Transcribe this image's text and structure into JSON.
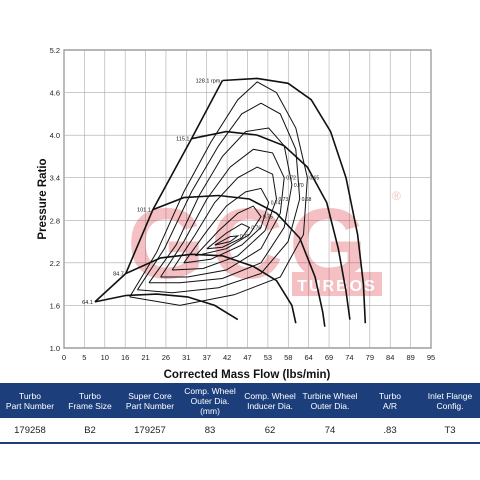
{
  "chart_data": {
    "type": "line",
    "xlabel": "Corrected Mass Flow (lbs/min)",
    "ylabel": "Pressure Ratio",
    "xlim": [
      0,
      95
    ],
    "ylim": [
      1.0,
      5.2
    ],
    "xticks": [
      "0",
      "5",
      "10",
      "16",
      "21",
      "26",
      "31",
      "37",
      "42",
      "47",
      "53",
      "58",
      "64",
      "69",
      "74",
      "79",
      "84",
      "89",
      "95"
    ],
    "yticks": [
      "1.0",
      "1.6",
      "2.2",
      "2.8",
      "3.4",
      "4.0",
      "4.6",
      "5.2"
    ],
    "grid": true,
    "speed_lines": [
      {
        "label": "64.1",
        "points": [
          [
            8,
            1.65
          ],
          [
            16,
            1.74
          ],
          [
            24,
            1.76
          ],
          [
            32,
            1.72
          ],
          [
            39,
            1.6
          ],
          [
            45,
            1.4
          ]
        ]
      },
      {
        "label": "84.7",
        "points": [
          [
            16,
            2.05
          ],
          [
            25,
            2.27
          ],
          [
            33,
            2.32
          ],
          [
            41,
            2.3
          ],
          [
            49,
            2.15
          ],
          [
            55,
            1.95
          ],
          [
            59,
            1.6
          ],
          [
            60,
            1.35
          ]
        ]
      },
      {
        "label": "101.1",
        "points": [
          [
            23,
            2.95
          ],
          [
            31,
            3.12
          ],
          [
            40,
            3.15
          ],
          [
            48,
            3.1
          ],
          [
            55,
            2.9
          ],
          [
            61,
            2.55
          ],
          [
            65,
            2.0
          ],
          [
            67,
            1.5
          ],
          [
            67.5,
            1.3
          ]
        ]
      },
      {
        "label": "115.1",
        "points": [
          [
            33,
            3.95
          ],
          [
            42,
            4.05
          ],
          [
            50,
            4.0
          ],
          [
            57,
            3.85
          ],
          [
            63,
            3.55
          ],
          [
            68,
            3.05
          ],
          [
            71,
            2.4
          ],
          [
            73,
            1.8
          ],
          [
            74,
            1.4
          ]
        ]
      },
      {
        "label": "128.1 rpm",
        "points": [
          [
            41,
            4.77
          ],
          [
            50,
            4.8
          ],
          [
            58,
            4.73
          ],
          [
            64,
            4.5
          ],
          [
            69,
            4.05
          ],
          [
            73,
            3.4
          ],
          [
            76,
            2.6
          ],
          [
            77.5,
            1.9
          ],
          [
            78,
            1.35
          ]
        ]
      }
    ],
    "surge_line": [
      [
        8,
        1.65
      ],
      [
        16,
        2.05
      ],
      [
        23,
        2.95
      ],
      [
        33,
        3.95
      ],
      [
        41,
        4.77
      ]
    ],
    "efficiency_islands": [
      {
        "label": "0.65",
        "points": [
          [
            17,
            1.72
          ],
          [
            24,
            2.35
          ],
          [
            31,
            3.2
          ],
          [
            38,
            3.9
          ],
          [
            45,
            4.5
          ],
          [
            50,
            4.75
          ],
          [
            55,
            4.6
          ],
          [
            60,
            4.1
          ],
          [
            63,
            3.4
          ],
          [
            62,
            2.6
          ],
          [
            56,
            2.0
          ],
          [
            44,
            1.75
          ],
          [
            30,
            1.6
          ],
          [
            17,
            1.72
          ]
        ]
      },
      {
        "label": "0.68",
        "points": [
          [
            19,
            1.82
          ],
          [
            26,
            2.4
          ],
          [
            33,
            3.2
          ],
          [
            40,
            3.85
          ],
          [
            46,
            4.3
          ],
          [
            51,
            4.45
          ],
          [
            56,
            4.3
          ],
          [
            60,
            3.8
          ],
          [
            61,
            3.1
          ],
          [
            58,
            2.5
          ],
          [
            51,
            2.05
          ],
          [
            40,
            1.85
          ],
          [
            28,
            1.78
          ],
          [
            19,
            1.82
          ]
        ]
      },
      {
        "label": "0.70",
        "points": [
          [
            22,
            1.92
          ],
          [
            29,
            2.45
          ],
          [
            35,
            3.15
          ],
          [
            41,
            3.7
          ],
          [
            47,
            4.05
          ],
          [
            53,
            4.1
          ],
          [
            57,
            3.85
          ],
          [
            59,
            3.3
          ],
          [
            57,
            2.7
          ],
          [
            51,
            2.2
          ],
          [
            41,
            1.98
          ],
          [
            30,
            1.92
          ],
          [
            22,
            1.92
          ]
        ]
      },
      {
        "label": "0.72",
        "points": [
          [
            25,
            2.0
          ],
          [
            31,
            2.5
          ],
          [
            37,
            3.1
          ],
          [
            43,
            3.55
          ],
          [
            49,
            3.8
          ],
          [
            54,
            3.75
          ],
          [
            57,
            3.4
          ],
          [
            56,
            2.9
          ],
          [
            51,
            2.4
          ],
          [
            42,
            2.1
          ],
          [
            32,
            2.0
          ],
          [
            25,
            2.0
          ]
        ]
      },
      {
        "label": "0.73",
        "points": [
          [
            28,
            2.1
          ],
          [
            34,
            2.6
          ],
          [
            39,
            3.05
          ],
          [
            45,
            3.4
          ],
          [
            50,
            3.55
          ],
          [
            54,
            3.45
          ],
          [
            55,
            3.1
          ],
          [
            52,
            2.65
          ],
          [
            45,
            2.3
          ],
          [
            36,
            2.12
          ],
          [
            28,
            2.1
          ]
        ]
      },
      {
        "label": "0.74",
        "points": [
          [
            31,
            2.2
          ],
          [
            37,
            2.65
          ],
          [
            42,
            3.0
          ],
          [
            47,
            3.2
          ],
          [
            51,
            3.25
          ],
          [
            53,
            3.05
          ],
          [
            51,
            2.7
          ],
          [
            46,
            2.45
          ],
          [
            38,
            2.25
          ],
          [
            31,
            2.2
          ]
        ]
      },
      {
        "label": "0.75",
        "points": [
          [
            34,
            2.3
          ],
          [
            40,
            2.65
          ],
          [
            45,
            2.9
          ],
          [
            49,
            3.0
          ],
          [
            51,
            2.85
          ],
          [
            48,
            2.6
          ],
          [
            42,
            2.4
          ],
          [
            34,
            2.3
          ]
        ]
      },
      {
        "label": "0.76",
        "points": [
          [
            37,
            2.4
          ],
          [
            42,
            2.62
          ],
          [
            46,
            2.75
          ],
          [
            48,
            2.7
          ],
          [
            46,
            2.55
          ],
          [
            41,
            2.42
          ],
          [
            37,
            2.4
          ]
        ]
      },
      {
        "label": "0.77",
        "points": [
          [
            39,
            2.45
          ],
          [
            43,
            2.57
          ],
          [
            45,
            2.58
          ],
          [
            43,
            2.5
          ],
          [
            39,
            2.45
          ]
        ]
      }
    ]
  },
  "watermark": {
    "logo": "GCG",
    "subtitle": "TURBOS",
    "mark": "®"
  },
  "table": {
    "headers": [
      [
        "Turbo",
        "Part Number"
      ],
      [
        "Turbo",
        "Frame Size"
      ],
      [
        "Super Core",
        "Part Number"
      ],
      [
        "Comp. Wheel",
        "Outer Dia. (mm)"
      ],
      [
        "Comp. Wheel",
        "Inducer Dia."
      ],
      [
        "Turbine Wheel",
        "Outer Dia."
      ],
      [
        "Turbo",
        "A/R"
      ],
      [
        "Inlet Flange",
        "Config."
      ]
    ],
    "row": [
      "179258",
      "B2",
      "179257",
      "83",
      "62",
      "74",
      ".83",
      "T3"
    ]
  }
}
